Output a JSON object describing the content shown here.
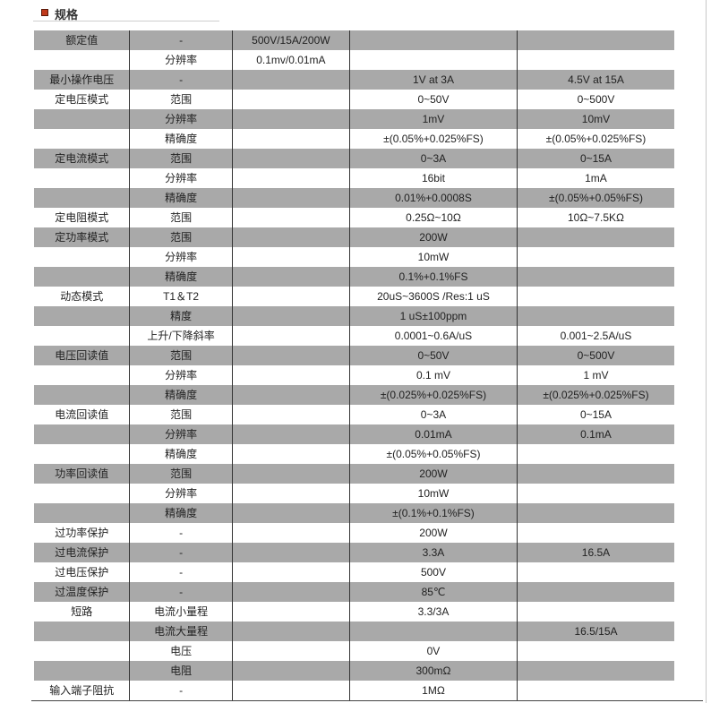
{
  "section": {
    "title": "规格",
    "accent_color": "#c0391b"
  },
  "table": {
    "row_shade_color": "#a9a9a9",
    "rows": [
      [
        "额定值",
        "-",
        "500V/15A/200W",
        "",
        ""
      ],
      [
        "",
        "分辨率",
        "0.1mv/0.01mA",
        "",
        ""
      ],
      [
        "最小操作电压",
        "-",
        "",
        "1V at 3A",
        "4.5V at 15A"
      ],
      [
        "定电压模式",
        "范围",
        "",
        "0~50V",
        "0~500V"
      ],
      [
        "",
        "分辨率",
        "",
        "1mV",
        "10mV"
      ],
      [
        "",
        "精确度",
        "",
        "±(0.05%+0.025%FS)",
        "±(0.05%+0.025%FS)"
      ],
      [
        "定电流模式",
        "范围",
        "",
        "0~3A",
        "0~15A"
      ],
      [
        "",
        "分辨率",
        "",
        "16bit",
        "1mA"
      ],
      [
        "",
        "精确度",
        "",
        "0.01%+0.0008S",
        "±(0.05%+0.05%FS)"
      ],
      [
        "定电阻模式",
        "范围",
        "",
        "0.25Ω~10Ω",
        "10Ω~7.5KΩ"
      ],
      [
        "定功率模式",
        "范围",
        "",
        "200W",
        ""
      ],
      [
        "",
        "分辨率",
        "",
        "10mW",
        ""
      ],
      [
        "",
        "精确度",
        "",
        "0.1%+0.1%FS",
        ""
      ],
      [
        "动态模式",
        "T1＆T2",
        "",
        "20uS~3600S /Res:1 uS",
        ""
      ],
      [
        "",
        "精度",
        "",
        "1 uS±100ppm",
        ""
      ],
      [
        "",
        "上升/下降斜率",
        "",
        "0.0001~0.6A/uS",
        "0.001~2.5A/uS"
      ],
      [
        "电压回读值",
        "范围",
        "",
        "0~50V",
        "0~500V"
      ],
      [
        "",
        "分辨率",
        "",
        "0.1 mV",
        "1 mV"
      ],
      [
        "",
        "精确度",
        "",
        "±(0.025%+0.025%FS)",
        "±(0.025%+0.025%FS)"
      ],
      [
        "电流回读值",
        "范围",
        "",
        "0~3A",
        "0~15A"
      ],
      [
        "",
        "分辨率",
        "",
        "0.01mA",
        "0.1mA"
      ],
      [
        "",
        "精确度",
        "",
        "±(0.05%+0.05%FS)",
        ""
      ],
      [
        "功率回读值",
        "范围",
        "",
        "200W",
        ""
      ],
      [
        "",
        "分辨率",
        "",
        "10mW",
        ""
      ],
      [
        "",
        "精确度",
        "",
        "±(0.1%+0.1%FS)",
        ""
      ],
      [
        "过功率保护",
        "-",
        "",
        "200W",
        ""
      ],
      [
        "过电流保护",
        "-",
        "",
        "3.3A",
        "16.5A"
      ],
      [
        "过电压保护",
        "-",
        "",
        "500V",
        ""
      ],
      [
        "过温度保护",
        "-",
        "",
        "85℃",
        ""
      ],
      [
        "短路",
        "电流小量程",
        "",
        "3.3/3A",
        ""
      ],
      [
        "",
        "电流大量程",
        "",
        "",
        "16.5/15A"
      ],
      [
        "",
        "电压",
        "",
        "0V",
        ""
      ],
      [
        "",
        "电阻",
        "",
        "300mΩ",
        ""
      ],
      [
        "输入端子阻抗",
        "-",
        "",
        "1MΩ",
        ""
      ]
    ]
  }
}
